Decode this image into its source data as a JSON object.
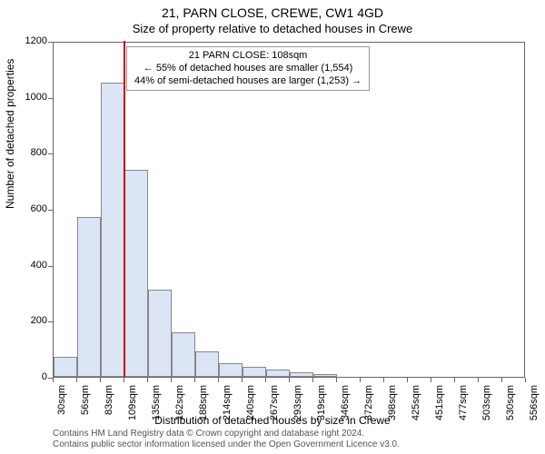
{
  "title": "21, PARN CLOSE, CREWE, CW1 4GD",
  "subtitle": "Size of property relative to detached houses in Crewe",
  "y_label": "Number of detached properties",
  "x_label": "Distribution of detached houses by size in Crewe",
  "footer_line1": "Contains HM Land Registry data © Crown copyright and database right 2024.",
  "footer_line2": "Contains public sector information licensed under the Open Government Licence v3.0.",
  "annotation": {
    "line1": "21 PARN CLOSE: 108sqm",
    "line2": "← 55% of detached houses are smaller (1,554)",
    "line3": "44% of semi-detached houses are larger (1,253) →"
  },
  "chart": {
    "type": "histogram",
    "x_ticks": [
      "30sqm",
      "56sqm",
      "83sqm",
      "109sqm",
      "135sqm",
      "162sqm",
      "188sqm",
      "214sqm",
      "240sqm",
      "267sqm",
      "293sqm",
      "319sqm",
      "346sqm",
      "372sqm",
      "398sqm",
      "425sqm",
      "451sqm",
      "477sqm",
      "503sqm",
      "530sqm",
      "556sqm"
    ],
    "values": [
      70,
      570,
      1050,
      740,
      310,
      160,
      90,
      50,
      35,
      25,
      15,
      10,
      0,
      0,
      0,
      0,
      0,
      0,
      0,
      0
    ],
    "y_lim": [
      0,
      1200
    ],
    "y_tick_step": 200,
    "bar_fill": "#dbe5f6",
    "bar_stroke": "#888888",
    "highlight_x": 108,
    "highlight_color": "#c00000",
    "x_min": 30,
    "x_max": 556,
    "background": "#ffffff",
    "axis_color": "#666666",
    "title_fontsize": 14,
    "subtitle_fontsize": 13,
    "label_fontsize": 12,
    "tick_fontsize": 11,
    "anno_fontsize": 11
  }
}
